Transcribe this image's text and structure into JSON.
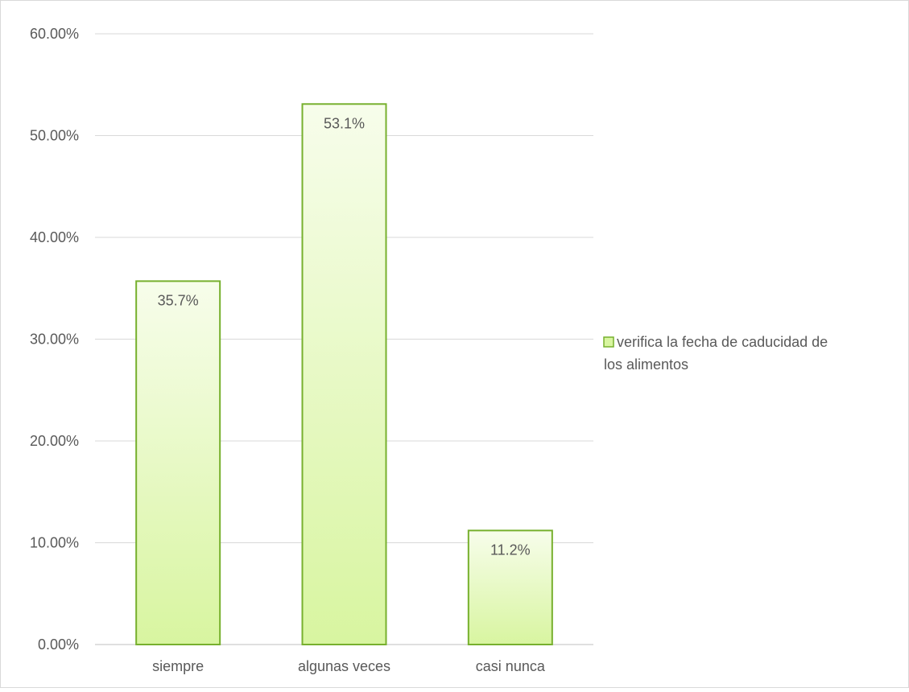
{
  "chart_data": {
    "type": "bar",
    "categories": [
      "siempre",
      "algunas veces",
      "casi nunca"
    ],
    "series": [
      {
        "name": "verifica la fecha de caducidad de los alimentos",
        "values": [
          35.7,
          53.1,
          11.2
        ]
      }
    ],
    "data_labels": [
      "35.7%",
      "53.1%",
      "11.2%"
    ],
    "y_ticks": [
      "0.00%",
      "10.00%",
      "20.00%",
      "30.00%",
      "40.00%",
      "50.00%",
      "60.00%"
    ],
    "ylim": [
      0,
      60
    ],
    "grid": true,
    "legend": {
      "position": "right",
      "line1": "verifica la fecha de caducidad de",
      "line2": "los alimentos"
    },
    "colors": {
      "bar_fill_top": "#f7fdeb",
      "bar_fill_bottom": "#d8f5a0",
      "bar_stroke": "#77b02e",
      "grid": "#d9d9d9",
      "axis": "#bfbfbf",
      "text": "#595959",
      "frame": "#d9d9d9"
    }
  }
}
